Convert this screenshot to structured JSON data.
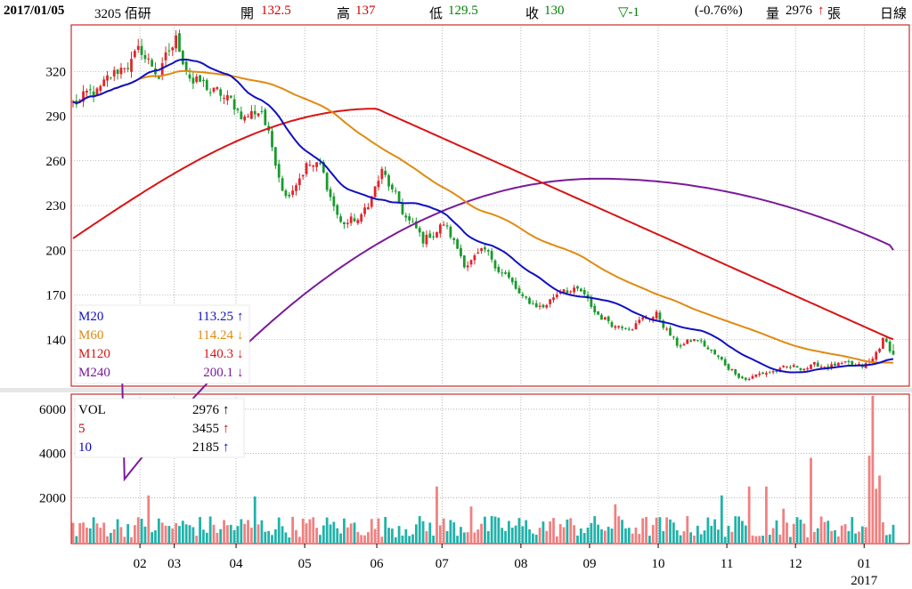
{
  "header": {
    "date": "2017/01/05",
    "stock": "3205 佰研",
    "open_label": "開",
    "open_value": "132.5",
    "high_label": "高",
    "high_value": "137",
    "low_label": "低",
    "low_value": "129.5",
    "close_label": "收",
    "close_value": "130",
    "change": "▽-1",
    "change_pct": "(-0.76%)",
    "volume_label": "量",
    "volume_value": "2976",
    "volume_arrow": "↑",
    "volume_unit": "張",
    "period": "日線"
  },
  "colors": {
    "up": "#e0242c",
    "down": "#1a9a2c",
    "up_vol": "#f08080",
    "down_vol": "#20b2aa",
    "m20": "#1010c0",
    "m60": "#e08a10",
    "m120": "#d81414",
    "m240": "#7a1a9a",
    "frame": "#c00000",
    "grid": "#888888"
  },
  "chart_data": [
    {
      "type": "candlestick",
      "ylim": [
        110,
        350
      ],
      "yticks": [
        140,
        170,
        200,
        230,
        260,
        290,
        320
      ],
      "x_tick_labels": [
        "02",
        "03",
        "04",
        "05",
        "06",
        "07",
        "08",
        "09",
        "10",
        "11",
        "12",
        "01"
      ],
      "x_extra_label": "2017",
      "n_days": 240,
      "month_start_index": [
        20,
        30,
        48,
        68,
        89,
        108,
        131,
        151,
        171,
        191,
        211,
        231
      ],
      "price_anchors": [
        [
          0,
          298
        ],
        [
          8,
          306
        ],
        [
          15,
          325
        ],
        [
          20,
          332
        ],
        [
          25,
          318
        ],
        [
          30,
          340
        ],
        [
          35,
          314
        ],
        [
          45,
          300
        ],
        [
          50,
          290
        ],
        [
          55,
          295
        ],
        [
          58,
          268
        ],
        [
          62,
          238
        ],
        [
          68,
          258
        ],
        [
          72,
          255
        ],
        [
          78,
          218
        ],
        [
          84,
          221
        ],
        [
          90,
          252
        ],
        [
          96,
          225
        ],
        [
          102,
          206
        ],
        [
          108,
          218
        ],
        [
          114,
          192
        ],
        [
          120,
          197
        ],
        [
          126,
          184
        ],
        [
          131,
          166
        ],
        [
          137,
          162
        ],
        [
          143,
          176
        ],
        [
          148,
          171
        ],
        [
          152,
          158
        ],
        [
          158,
          150
        ],
        [
          163,
          151
        ],
        [
          170,
          157
        ],
        [
          176,
          136
        ],
        [
          182,
          140
        ],
        [
          190,
          123
        ],
        [
          196,
          114
        ],
        [
          202,
          118
        ],
        [
          210,
          121
        ],
        [
          214,
          122
        ],
        [
          222,
          123
        ],
        [
          230,
          121
        ],
        [
          233,
          126
        ],
        [
          236,
          140
        ],
        [
          239,
          130
        ]
      ],
      "legend_ma": [
        {
          "name": "M20",
          "value": "113.25",
          "arrow": "↑",
          "period": 20
        },
        {
          "name": "M60",
          "value": "114.24",
          "arrow": "↓",
          "period": 60
        },
        {
          "name": "M120",
          "value": "140.3",
          "arrow": "↓",
          "period": 120
        },
        {
          "name": "M240",
          "value": "200.1",
          "arrow": "↓",
          "period": 240
        }
      ]
    },
    {
      "type": "bar",
      "ylim": [
        0,
        6600
      ],
      "yticks": [
        2000,
        4000,
        6000
      ],
      "legend": [
        {
          "name": "VOL",
          "value": "2976",
          "arrow": "↑"
        },
        {
          "name": "5",
          "value": "3455",
          "arrow": "↑"
        },
        {
          "name": "10",
          "value": "2185",
          "arrow": "↑"
        }
      ],
      "highlight_volumes": [
        [
          22,
          2100
        ],
        [
          31,
          720
        ],
        [
          53,
          2050
        ],
        [
          106,
          2500
        ],
        [
          116,
          1600
        ],
        [
          158,
          1700
        ],
        [
          189,
          2100
        ],
        [
          197,
          2500
        ],
        [
          202,
          2500
        ],
        [
          207,
          1500
        ],
        [
          215,
          3800
        ],
        [
          232,
          3900
        ],
        [
          233,
          6600
        ],
        [
          234,
          2400
        ],
        [
          235,
          3000
        ]
      ]
    }
  ]
}
